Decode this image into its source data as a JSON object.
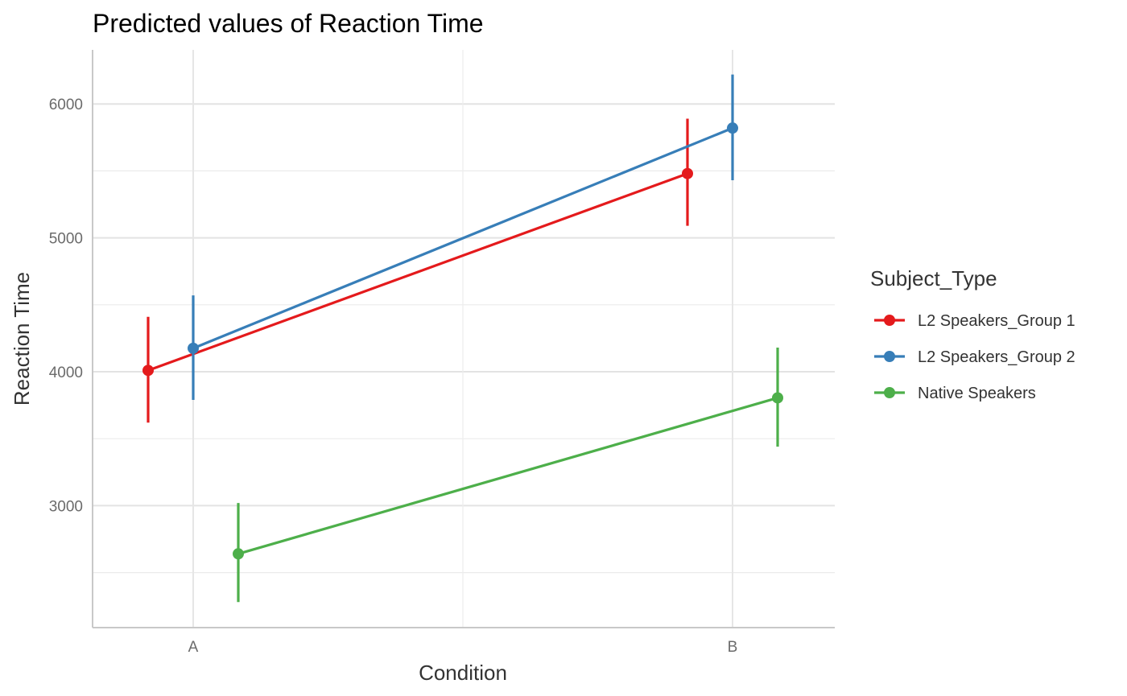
{
  "chart_data": {
    "type": "line",
    "title": "Predicted values of Reaction Time",
    "xlabel": "Condition",
    "ylabel": "Reaction Time",
    "categories": [
      "A",
      "B"
    ],
    "y_ticks": [
      3000,
      4000,
      5000,
      6000
    ],
    "ylim": [
      2100,
      6400
    ],
    "grid": true,
    "legend": {
      "title": "Subject_Type",
      "placement": "right"
    },
    "series": [
      {
        "name": "L2 Speakers_Group 1",
        "color": "#e41a1c",
        "values": [
          4010,
          5480
        ],
        "ci_low": [
          3620,
          5090
        ],
        "ci_high": [
          4410,
          5890
        ]
      },
      {
        "name": "L2 Speakers_Group 2",
        "color": "#377eb8",
        "values": [
          4175,
          5820
        ],
        "ci_low": [
          3790,
          5430
        ],
        "ci_high": [
          4570,
          6220
        ]
      },
      {
        "name": "Native Speakers",
        "color": "#4daf4a",
        "values": [
          2640,
          3805
        ],
        "ci_low": [
          2280,
          3440
        ],
        "ci_high": [
          3020,
          4180
        ]
      }
    ]
  }
}
